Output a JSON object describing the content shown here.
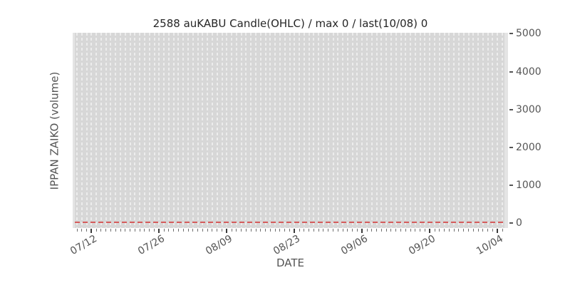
{
  "chart_data": {
    "type": "candlestick",
    "title": "2588 auKABU Candle(OHLC) / max 0 / last(10/08) 0",
    "xlabel": "DATE",
    "ylabel": "IPPAN ZAIKO (volume)",
    "x_tick_labels": [
      "07/12",
      "07/26",
      "08/09",
      "08/23",
      "09/06",
      "09/20",
      "10/04"
    ],
    "x_major_day_indices": [
      3,
      17,
      31,
      45,
      59,
      73,
      87
    ],
    "x_days_count": 89,
    "x_minor_ticks": "one per day",
    "x_major_tick_interval_days": 14,
    "yticks": [
      0,
      1000,
      2000,
      3000,
      4000,
      5000
    ],
    "ylim": [
      0,
      5000
    ],
    "y_axis_side": "right",
    "grid": "vertical dashed line per day, no horizontal gridlines",
    "legend": "none",
    "series": [
      {
        "name": "IPPAN ZAIKO (volume)",
        "summary": "flat at 0 for every day shown (no visible candles)",
        "constant_value": 0
      }
    ],
    "data_summary": {
      "max": 0,
      "last_date": "10/08",
      "last_value": 0
    },
    "zero_line": {
      "value": 0,
      "style": "dashed",
      "color": "#d55c5c"
    }
  },
  "colors": {
    "figure_bg": "#ffffff",
    "plot_bg": "#e4e4e4",
    "band_bg": "#d7d7d7",
    "grid_dash": "#ececec",
    "zero_line": "#d55c5c",
    "title_text": "#262626",
    "label_text": "#555555",
    "tick_text": "#555555",
    "minor_tick_mark": "#707070",
    "major_tick_mark": "#3a3a3a"
  }
}
